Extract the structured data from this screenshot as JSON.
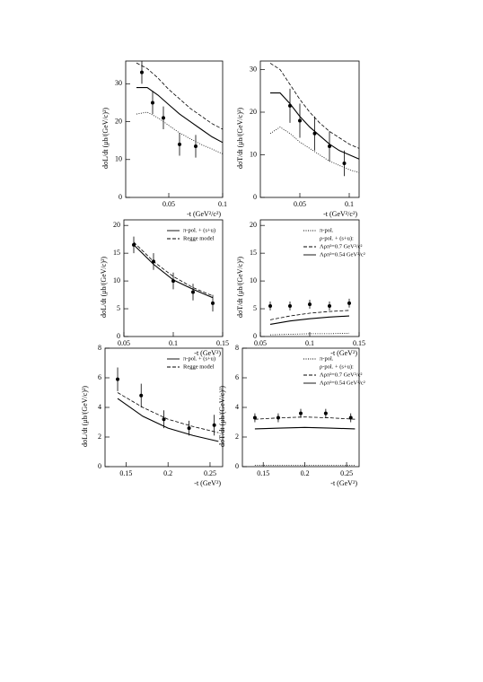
{
  "chart_data": [
    {
      "type": "line",
      "ylabel": "dσL/dt (μb/(GeV/c)²)",
      "xlabel": "-t (GeV²/c²)",
      "xlim": [
        0.01,
        0.1
      ],
      "xticks": [
        0.05,
        0.1
      ],
      "ylim": [
        0,
        36
      ],
      "yticks": [
        0,
        10,
        20,
        30
      ],
      "series": [
        {
          "dash": "dashed",
          "x": [
            0.02,
            0.03,
            0.04,
            0.05,
            0.06,
            0.07,
            0.08,
            0.09,
            0.1
          ],
          "values": [
            35.5,
            34,
            31.5,
            28.5,
            26,
            23.5,
            21.5,
            19.5,
            18
          ]
        },
        {
          "dash": "solid",
          "x": [
            0.02,
            0.03,
            0.04,
            0.05,
            0.06,
            0.07,
            0.08,
            0.09,
            0.1
          ],
          "values": [
            29,
            29,
            27,
            24.5,
            22,
            20,
            18,
            16,
            14.5
          ]
        },
        {
          "dash": "dotted",
          "x": [
            0.02,
            0.03,
            0.04,
            0.05,
            0.06,
            0.07,
            0.08,
            0.09,
            0.1
          ],
          "values": [
            22,
            22.5,
            21,
            19,
            17,
            15.5,
            14,
            12.8,
            11.5
          ]
        },
        {
          "kind": "points",
          "x": [
            0.025,
            0.035,
            0.045,
            0.06,
            0.075
          ],
          "values": [
            33,
            25,
            21,
            14,
            13.5
          ],
          "errors": [
            3,
            3,
            3,
            3,
            3
          ]
        }
      ]
    },
    {
      "type": "line",
      "ylabel": "dσT/dt (μb/(GeV/c)²)",
      "xlabel": "-t (GeV²/c²)",
      "xlim": [
        0.01,
        0.11
      ],
      "xticks": [
        0.05,
        0.1
      ],
      "ylim": [
        0,
        32
      ],
      "yticks": [
        0,
        10,
        20,
        30
      ],
      "series": [
        {
          "dash": "dashed",
          "x": [
            0.02,
            0.03,
            0.04,
            0.05,
            0.06,
            0.07,
            0.08,
            0.09,
            0.1,
            0.11
          ],
          "values": [
            31.5,
            30,
            26.5,
            23,
            20,
            17.5,
            15.5,
            14,
            12.5,
            11.5
          ]
        },
        {
          "dash": "solid",
          "x": [
            0.02,
            0.03,
            0.04,
            0.05,
            0.06,
            0.07,
            0.08,
            0.09,
            0.1,
            0.11
          ],
          "values": [
            24.5,
            24.5,
            22,
            19,
            16.5,
            14.5,
            12.5,
            11,
            10,
            9
          ]
        },
        {
          "dash": "dotted",
          "x": [
            0.02,
            0.03,
            0.04,
            0.05,
            0.06,
            0.07,
            0.08,
            0.09,
            0.1,
            0.11
          ],
          "values": [
            15,
            16.5,
            15,
            13,
            11.5,
            10,
            8.5,
            7.5,
            6.5,
            5.8
          ]
        },
        {
          "kind": "points",
          "x": [
            0.04,
            0.05,
            0.065,
            0.08,
            0.095
          ],
          "values": [
            21.5,
            18,
            15,
            12,
            8
          ],
          "errors": [
            4,
            4,
            4,
            3.5,
            3
          ]
        }
      ]
    },
    {
      "type": "line",
      "ylabel": "dσL/dt (μb/(GeV/c)²)",
      "xlabel": "-t (GeV²)",
      "xlim": [
        0.05,
        0.15
      ],
      "xticks": [
        0.05,
        0.1,
        0.15
      ],
      "ylim": [
        0,
        21
      ],
      "yticks": [
        0,
        5,
        10,
        15,
        20
      ],
      "series": [
        {
          "name": "π-pol. + (s+u)",
          "dash": "solid",
          "x": [
            0.06,
            0.08,
            0.1,
            0.12,
            0.14
          ],
          "values": [
            16.5,
            13,
            10.2,
            8.5,
            7
          ]
        },
        {
          "name": "Regge model",
          "dash": "dashed",
          "x": [
            0.06,
            0.08,
            0.1,
            0.12,
            0.14
          ],
          "values": [
            17,
            13.5,
            10.8,
            8.8,
            7.3
          ]
        },
        {
          "kind": "points",
          "x": [
            0.06,
            0.08,
            0.1,
            0.12,
            0.14
          ],
          "values": [
            16.5,
            13.5,
            10,
            8,
            6
          ],
          "errors": [
            1.5,
            1.5,
            1.5,
            1.5,
            1.5
          ]
        }
      ]
    },
    {
      "type": "line",
      "ylabel": "dσT/dt (μb/(GeV/c)²)",
      "xlabel": "-t (GeV²)",
      "xlim": [
        0.05,
        0.15
      ],
      "xticks": [
        0.05,
        0.1,
        0.15
      ],
      "ylim": [
        0,
        21
      ],
      "yticks": [
        0,
        5,
        10,
        15,
        20
      ],
      "legend_heading": "ρ-pol. + (s+u):",
      "series": [
        {
          "name": "π-pol.",
          "dash": "dotted",
          "x": [
            0.06,
            0.08,
            0.1,
            0.12,
            0.14
          ],
          "values": [
            0.3,
            0.4,
            0.5,
            0.5,
            0.6
          ]
        },
        {
          "name": "Λρπ²=0.7 GeV²/c²",
          "dash": "dashed",
          "x": [
            0.06,
            0.08,
            0.1,
            0.12,
            0.14
          ],
          "values": [
            3,
            3.7,
            4.2,
            4.5,
            4.7
          ]
        },
        {
          "name": "Λρπ²=0.54 GeV²/c²",
          "dash": "solid",
          "x": [
            0.06,
            0.08,
            0.1,
            0.12,
            0.14
          ],
          "values": [
            2.2,
            2.8,
            3.2,
            3.5,
            3.7
          ]
        },
        {
          "kind": "points",
          "x": [
            0.06,
            0.08,
            0.1,
            0.12,
            0.14
          ],
          "values": [
            5.5,
            5.5,
            5.8,
            5.5,
            6
          ],
          "errors": [
            0.8,
            0.8,
            0.8,
            0.8,
            0.8
          ]
        }
      ]
    },
    {
      "type": "line",
      "ylabel": "dσL/dt (μb/(GeV/c)²)",
      "xlabel": "-t (GeV²)",
      "xlim": [
        0.125,
        0.265
      ],
      "xticks": [
        0.15,
        0.2,
        0.25
      ],
      "ylim": [
        0,
        8
      ],
      "yticks": [
        0,
        2,
        4,
        6,
        8
      ],
      "series": [
        {
          "name": "π-pol. + (s+u)",
          "dash": "solid",
          "x": [
            0.14,
            0.17,
            0.2,
            0.23,
            0.26
          ],
          "values": [
            4.6,
            3.4,
            2.6,
            2.1,
            1.7
          ]
        },
        {
          "name": "Regge model",
          "dash": "dashed",
          "x": [
            0.14,
            0.17,
            0.2,
            0.23,
            0.26
          ],
          "values": [
            5,
            4,
            3.2,
            2.7,
            2.3
          ]
        },
        {
          "kind": "points",
          "x": [
            0.14,
            0.168,
            0.195,
            0.225,
            0.255
          ],
          "values": [
            5.9,
            4.8,
            3.2,
            2.6,
            2.8
          ],
          "errors": [
            0.8,
            0.8,
            0.6,
            0.5,
            0.7
          ]
        }
      ]
    },
    {
      "type": "line",
      "ylabel": "dσT/dt (μb/(GeV/c)²)",
      "xlabel": "-t (GeV²)",
      "xlim": [
        0.125,
        0.265
      ],
      "xticks": [
        0.15,
        0.2,
        0.25
      ],
      "ylim": [
        0,
        8
      ],
      "yticks": [
        0,
        2,
        4,
        6,
        8
      ],
      "legend_heading": "ρ-pol. + (s+u):",
      "series": [
        {
          "name": "π-pol.",
          "dash": "dotted",
          "x": [
            0.14,
            0.17,
            0.2,
            0.23,
            0.26
          ],
          "values": [
            0.1,
            0.1,
            0.1,
            0.1,
            0.1
          ]
        },
        {
          "name": "Λρπ²=0.7 GeV²/c²",
          "dash": "dashed",
          "x": [
            0.14,
            0.17,
            0.2,
            0.23,
            0.26
          ],
          "values": [
            3.2,
            3.3,
            3.35,
            3.3,
            3.2
          ]
        },
        {
          "name": "Λρπ²=0.54 GeV²/c²",
          "dash": "solid",
          "x": [
            0.14,
            0.17,
            0.2,
            0.23,
            0.26
          ],
          "values": [
            2.55,
            2.6,
            2.65,
            2.6,
            2.55
          ]
        },
        {
          "kind": "points",
          "x": [
            0.14,
            0.168,
            0.195,
            0.225,
            0.255
          ],
          "values": [
            3.3,
            3.3,
            3.6,
            3.6,
            3.3
          ],
          "errors": [
            0.3,
            0.3,
            0.3,
            0.3,
            0.3
          ]
        }
      ]
    }
  ]
}
